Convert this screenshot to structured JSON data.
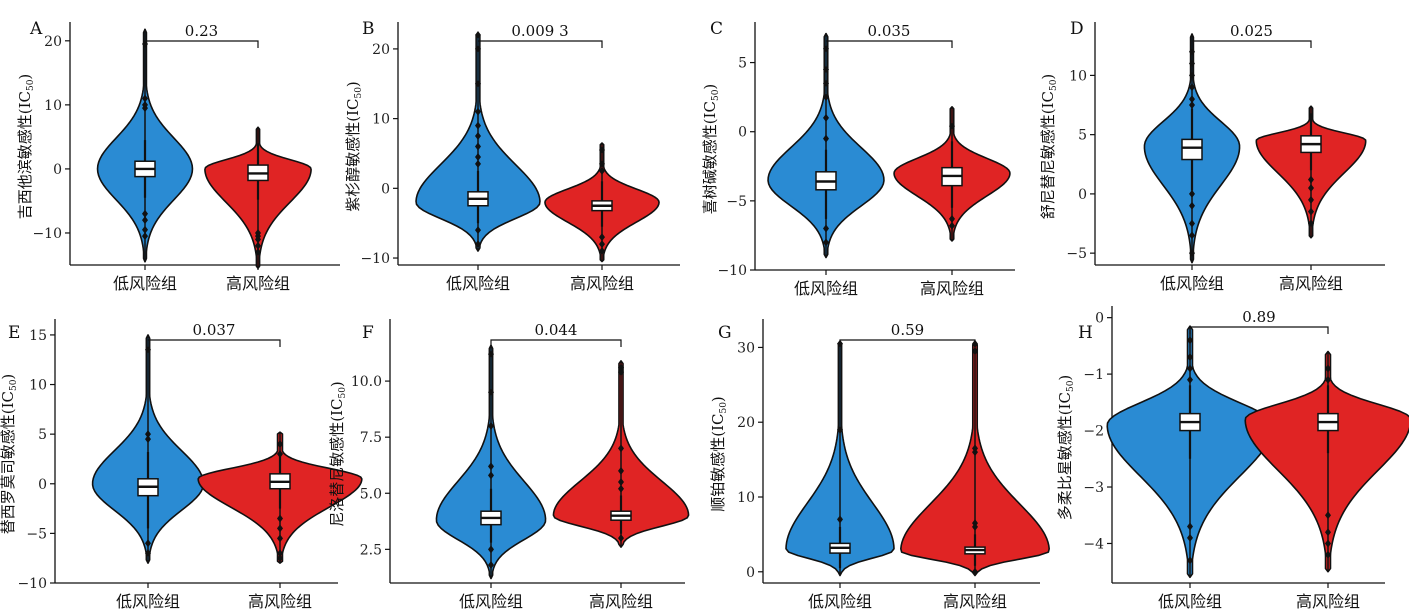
{
  "figure": {
    "blue_color": "#2a8bd3",
    "red_color": "#e02424"
  },
  "chart_data": [
    {
      "type": "violin",
      "panel": "A",
      "ylabel": "吉西他滨敏感性(IC50)",
      "categories": [
        "低风险组",
        "高风险组"
      ],
      "ylim": [
        -15,
        22
      ],
      "yticks": [
        -10,
        0,
        10,
        20
      ],
      "pvalue": "0.23",
      "groups": [
        {
          "color": "blue",
          "min": -14.5,
          "max": 21.8,
          "q1": -1.2,
          "median": 0,
          "q3": 1.2,
          "whisker_low": -4.5,
          "whisker_high": 4.5,
          "peak": 0,
          "half_width": 0.42,
          "outliers": [
            19.5,
            11,
            10,
            9.5,
            -7,
            -8,
            -9.5,
            -10.5
          ]
        },
        {
          "color": "red",
          "min": -15.5,
          "max": 6.5,
          "q1": -1.8,
          "median": -0.7,
          "q3": 0.6,
          "whisker_low": -4.8,
          "whisker_high": 4,
          "peak": 0,
          "half_width": 0.47,
          "outliers": [
            -10,
            -10.5,
            -11,
            -12,
            -13
          ]
        }
      ]
    },
    {
      "type": "violin",
      "panel": "B",
      "ylabel": "紫杉醇敏感性(IC50)",
      "categories": [
        "低风险组",
        "高风险组"
      ],
      "ylim": [
        -11,
        23
      ],
      "yticks": [
        -10,
        0,
        10,
        20
      ],
      "pvalue": "0.009 3",
      "groups": [
        {
          "color": "blue",
          "min": -9,
          "max": 22.3,
          "q1": -2.5,
          "median": -1.5,
          "q3": -0.5,
          "whisker_low": -5,
          "whisker_high": 2.5,
          "peak": -2,
          "half_width": 0.5,
          "outliers": [
            22,
            20,
            15,
            11,
            9,
            7.5,
            6,
            4.5,
            3.5,
            -6,
            -8
          ]
        },
        {
          "color": "red",
          "min": -10.5,
          "max": 6.5,
          "q1": -3.2,
          "median": -2.5,
          "q3": -1.8,
          "whisker_low": -5.5,
          "whisker_high": 1,
          "peak": -2,
          "half_width": 0.46,
          "outliers": [
            5.5,
            3.5,
            2.5,
            -7,
            -8,
            -9
          ]
        }
      ]
    },
    {
      "type": "violin",
      "panel": "C",
      "ylabel": "喜树碱敏感性(IC50)",
      "categories": [
        "低风险组",
        "高风险组"
      ],
      "ylim": [
        -10,
        7.5
      ],
      "yticks": [
        -10,
        -5,
        0,
        5
      ],
      "pvalue": "0.035",
      "groups": [
        {
          "color": "blue",
          "min": -9.1,
          "max": 7.1,
          "q1": -4.2,
          "median": -3.6,
          "q3": -2.9,
          "whisker_low": -6.3,
          "whisker_high": -1.3,
          "peak": -3.5,
          "half_width": 0.46,
          "outliers": [
            6,
            4.5,
            3.5,
            2.5,
            1,
            -0.5,
            -7,
            -8
          ]
        },
        {
          "color": "red",
          "min": -7.9,
          "max": 1.8,
          "q1": -3.9,
          "median": -3.2,
          "q3": -2.6,
          "whisker_low": -5.5,
          "whisker_high": -0.7,
          "peak": -3,
          "half_width": 0.46,
          "outliers": [
            0.4,
            -6.3,
            -6.8
          ]
        }
      ]
    },
    {
      "type": "violin",
      "panel": "D",
      "ylabel": "舒尼替尼敏感性(IC50)",
      "categories": [
        "低风险组",
        "高风险组"
      ],
      "ylim": [
        -6,
        14
      ],
      "yticks": [
        -5,
        0,
        5,
        10
      ],
      "pvalue": "0.025",
      "groups": [
        {
          "color": "blue",
          "min": -5.8,
          "max": 13.5,
          "q1": 2.9,
          "median": 3.9,
          "q3": 4.6,
          "whisker_low": 0.3,
          "whisker_high": 7.2,
          "peak": 4,
          "half_width": 0.4,
          "outliers": [
            12,
            11,
            10,
            9,
            8,
            7.5,
            0,
            -1,
            -2.5,
            -3.5,
            -5
          ]
        },
        {
          "color": "red",
          "min": -3.7,
          "max": 7.4,
          "q1": 3.5,
          "median": 4.2,
          "q3": 4.9,
          "whisker_low": 2,
          "whisker_high": 6.8,
          "peak": 4.5,
          "half_width": 0.46,
          "outliers": [
            1.2,
            0.5,
            -0.5,
            -1.5,
            -2.5
          ]
        }
      ]
    },
    {
      "type": "violin",
      "panel": "E",
      "ylabel": "替西罗莫司敏感性(IC50)",
      "categories": [
        "低风险组",
        "高风险组"
      ],
      "ylim": [
        -10,
        16
      ],
      "yticks": [
        -10,
        -5,
        0,
        5,
        10,
        15
      ],
      "pvalue": "0.037",
      "groups": [
        {
          "color": "blue",
          "min": -8,
          "max": 15,
          "q1": -1.2,
          "median": -0.3,
          "q3": 0.5,
          "whisker_low": -4.5,
          "whisker_high": 3.2,
          "peak": 0,
          "half_width": 0.42,
          "outliers": [
            13.5,
            5,
            4.5,
            -6,
            -7
          ]
        },
        {
          "color": "red",
          "min": -8,
          "max": 5.2,
          "q1": -0.5,
          "median": 0.2,
          "q3": 1,
          "whisker_low": -2.5,
          "whisker_high": 3,
          "peak": 0.5,
          "half_width": 0.62,
          "outliers": [
            4,
            3,
            -3.5,
            -4.5,
            -5.5,
            -7,
            -7.5
          ]
        }
      ]
    },
    {
      "type": "violin",
      "panel": "F",
      "ylabel": "尼洛替尼敏感性(IC50)",
      "categories": [
        "低风险组",
        "高风险组"
      ],
      "ylim": [
        1,
        12.5
      ],
      "yticks": [
        2.5,
        5.0,
        7.5,
        10.0
      ],
      "yticklabels": [
        "2.5",
        "5.0",
        "7.5",
        "10.0"
      ],
      "pvalue": "0.044",
      "groups": [
        {
          "color": "blue",
          "min": 1.2,
          "max": 11.6,
          "q1": 3.6,
          "median": 3.9,
          "q3": 4.2,
          "whisker_low": 2.8,
          "whisker_high": 5.2,
          "peak": 3.8,
          "half_width": 0.42,
          "outliers": [
            11.2,
            9.5,
            8,
            6.2,
            5.8,
            2.5,
            1.8
          ]
        },
        {
          "color": "red",
          "min": 2.6,
          "max": 10.9,
          "q1": 3.8,
          "median": 4,
          "q3": 4.2,
          "whisker_low": 3.2,
          "whisker_high": 4.9,
          "peak": 4,
          "half_width": 0.52,
          "outliers": [
            10.6,
            10.4,
            7,
            6,
            5.5,
            5.2,
            3
          ]
        }
      ]
    },
    {
      "type": "violin",
      "panel": "G",
      "ylabel": "顺铂敏感性(IC50)",
      "categories": [
        "低风险组",
        "高风险组"
      ],
      "ylim": [
        -1.5,
        33
      ],
      "yticks": [
        0,
        10,
        20,
        30
      ],
      "pvalue": "0.59",
      "groups": [
        {
          "color": "blue",
          "min": -0.5,
          "max": 30.8,
          "q1": 2.5,
          "median": 3.2,
          "q3": 3.8,
          "whisker_low": 0.5,
          "whisker_high": 6,
          "peak": 3,
          "half_width": 0.4,
          "outliers": [
            30.5,
            19,
            7
          ]
        },
        {
          "color": "red",
          "min": -0.5,
          "max": 30.8,
          "q1": 2.4,
          "median": 2.9,
          "q3": 3.3,
          "whisker_low": 0.8,
          "whisker_high": 5,
          "peak": 2.8,
          "half_width": 0.55,
          "outliers": [
            30.5,
            29.5,
            16.5,
            16,
            6.5,
            6,
            0
          ]
        }
      ]
    },
    {
      "type": "violin",
      "panel": "H",
      "ylabel": "多柔比星敏感性(IC50)",
      "categories": [
        "低风险组",
        "高风险组"
      ],
      "ylim": [
        -4.7,
        0.1
      ],
      "yticks": [
        -4,
        -3,
        -2,
        -1,
        0
      ],
      "pvalue": "0.89",
      "groups": [
        {
          "color": "blue",
          "min": -4.6,
          "max": -0.15,
          "q1": -2.0,
          "median": -1.85,
          "q3": -1.7,
          "whisker_low": -2.5,
          "whisker_high": -1.2,
          "peak": -1.9,
          "half_width": 0.6,
          "outliers": [
            -0.4,
            -0.7,
            -0.9,
            -1.1,
            -3.7,
            -3.9,
            -4.3
          ]
        },
        {
          "color": "red",
          "min": -4.5,
          "max": -0.6,
          "q1": -2.0,
          "median": -1.85,
          "q3": -1.7,
          "whisker_low": -2.4,
          "whisker_high": -1.2,
          "peak": -1.8,
          "half_width": 0.6,
          "outliers": [
            -0.9,
            -1.1,
            -3.5,
            -3.8,
            -4.0,
            -4.2
          ]
        }
      ]
    }
  ]
}
